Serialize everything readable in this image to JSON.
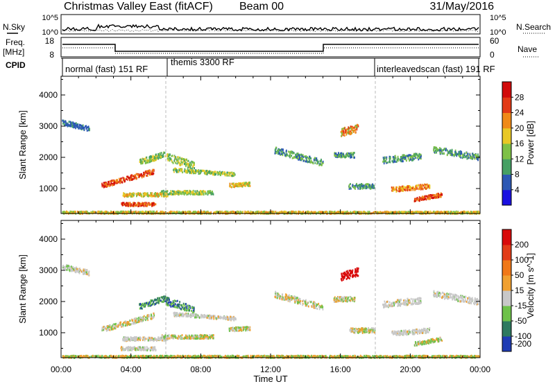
{
  "header": {
    "title": "Christmas Valley East (fitACF)",
    "beam": "Beam 00",
    "date": "31/May/2016"
  },
  "top_panels": {
    "nsky_label": "N.Sky",
    "nsky_ticks": [
      "10^5",
      "10^0"
    ],
    "nsearch_label": "N.Search",
    "nsearch_ticks": [
      "10^5",
      "10^0"
    ],
    "freq_label": "Freq.",
    "freq_unit": "[MHz]",
    "freq_ticks": [
      "18",
      "8"
    ],
    "nave_label": "Nave",
    "nave_ticks": [
      "60",
      "0"
    ],
    "cpid_label": "CPID",
    "cpid_segments": [
      {
        "label": "normal (fast) 151 RF"
      },
      {
        "label": "themis 3300 RF"
      },
      {
        "label": "interleavedscan (fast) 191 RF"
      }
    ]
  },
  "chart_data": [
    {
      "type": "heatmap",
      "title": "Power",
      "xlabel": "Time UT",
      "ylabel": "Slant Range [km]",
      "x_ticks": [
        "00:00",
        "04:00",
        "08:00",
        "12:00",
        "16:00",
        "20:00",
        "00:00"
      ],
      "xlim": [
        0,
        24
      ],
      "y_ticks": [
        1000,
        2000,
        3000,
        4000
      ],
      "ylim": [
        200,
        4600
      ],
      "colorbar_label": "Power [dB]",
      "colorbar_ticks": [
        4,
        8,
        12,
        16,
        20,
        24,
        28
      ],
      "colorbar_colors": [
        "#1a10e0",
        "#2c58b4",
        "#46a064",
        "#7ec146",
        "#e9c825",
        "#f08a18",
        "#e23a16",
        "#d10a0a"
      ],
      "cpid_change_times": [
        6.0,
        18.0
      ]
    },
    {
      "type": "heatmap",
      "title": "Velocity",
      "xlabel": "Time UT",
      "ylabel": "Slant Range [km]",
      "x_ticks": [
        "00:00",
        "04:00",
        "08:00",
        "12:00",
        "16:00",
        "20:00",
        "00:00"
      ],
      "xlim": [
        0,
        24
      ],
      "y_ticks": [
        1000,
        2000,
        3000,
        4000
      ],
      "ylim": [
        200,
        4600
      ],
      "colorbar_label": "Velocity [m s^-1]",
      "colorbar_ticks": [
        200,
        100,
        50,
        15,
        -15,
        -50,
        -100,
        -200
      ],
      "colorbar_colors": [
        "#1f3cb4",
        "#2e7a60",
        "#6ec24a",
        "#c8c8c8",
        "#f0a030",
        "#f07818",
        "#e23c18",
        "#d80a0a"
      ],
      "cpid_change_times": [
        6.0,
        18.0
      ]
    }
  ]
}
